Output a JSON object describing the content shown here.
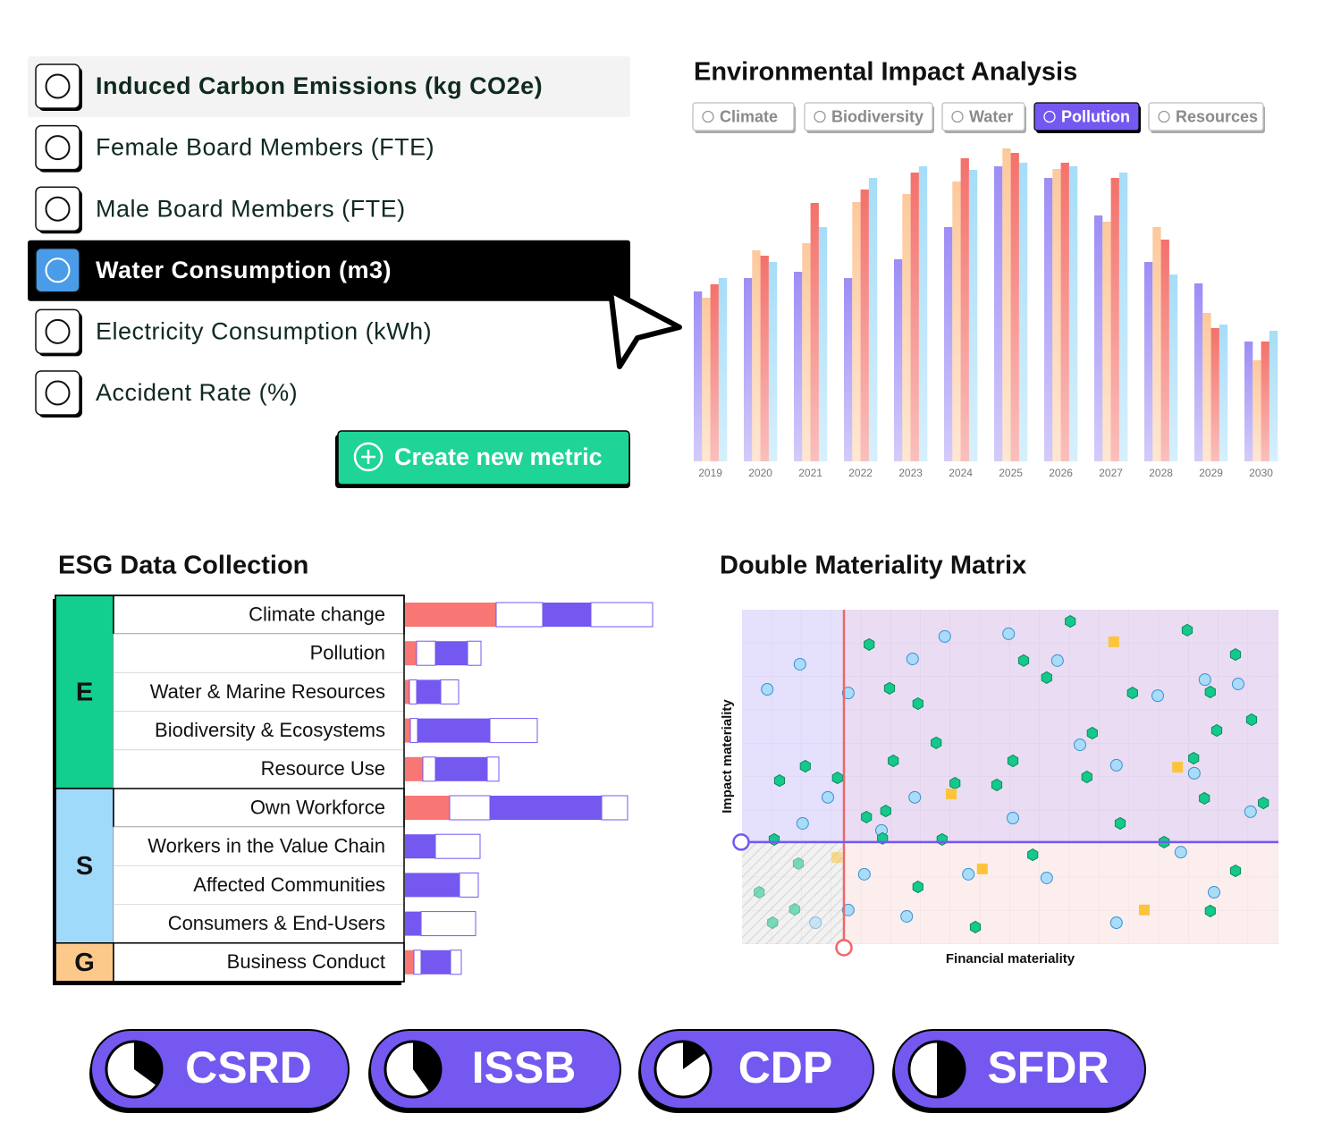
{
  "metrics": {
    "items": [
      "Induced Carbon Emissions (kg CO2e)",
      "Female Board Members (FTE)",
      "Male Board Members (FTE)",
      "Water Consumption (m3)",
      "Electricity Consumption (kWh)",
      "Accident Rate (%)"
    ],
    "hovered": 0,
    "selected": 3,
    "button": "Create new metric"
  },
  "impact_chart": {
    "type": "bar",
    "title": "Environmental Impact Analysis",
    "tabs": [
      "Climate",
      "Biodiversity",
      "Water",
      "Pollution",
      "Resources"
    ],
    "active_tab": 3,
    "categories": [
      "2019",
      "2020",
      "2021",
      "2022",
      "2023",
      "2024",
      "2025",
      "2026",
      "2027",
      "2028",
      "2029",
      "2030"
    ],
    "series": [
      {
        "color": "#9d8df6",
        "values": [
          190,
          205,
          212,
          205,
          226,
          262,
          330,
          317,
          275,
          223,
          199,
          134
        ]
      },
      {
        "color": "#fdc99c",
        "values": [
          183,
          236,
          244,
          290,
          299,
          313,
          350,
          327,
          268,
          262,
          166,
          113
        ]
      },
      {
        "color": "#f4716b",
        "values": [
          198,
          230,
          289,
          304,
          323,
          339,
          345,
          334,
          317,
          248,
          149,
          134
        ]
      },
      {
        "color": "#a6ddf8",
        "values": [
          205,
          223,
          262,
          317,
          330,
          326,
          334,
          330,
          323,
          209,
          153,
          146
        ]
      }
    ]
  },
  "esg_chart": {
    "type": "stacked-bar",
    "title": "ESG Data Collection",
    "groups": [
      {
        "label": "E",
        "color": "#13cf8f",
        "categories": [
          "Climate change",
          "Pollution",
          "Water & Marine Resources",
          "Biodiversity & Ecosystems",
          "Resource Use"
        ]
      },
      {
        "label": "S",
        "color": "#a0dafb",
        "categories": [
          "Own Workforce",
          "Workers in the Value Chain",
          "Affected  Communities",
          "Consumers  & End-Users"
        ]
      },
      {
        "label": "G",
        "color": "#fcc98b",
        "categories": [
          "Business Conduct"
        ]
      }
    ],
    "series": [
      {
        "color": "#f87673",
        "values": [
          102,
          13,
          5,
          6,
          20,
          50,
          0,
          0,
          0,
          10
        ]
      },
      {
        "color": "#ffffff",
        "values": [
          52,
          21,
          8,
          8,
          14,
          45,
          0,
          0,
          0,
          8
        ]
      },
      {
        "color": "#7458f0",
        "values": [
          54,
          36,
          27,
          81,
          58,
          125,
          34,
          61,
          18,
          33
        ]
      },
      {
        "color": "#ffffff",
        "values": [
          69,
          15,
          20,
          53,
          13,
          29,
          50,
          21,
          61,
          12
        ]
      }
    ]
  },
  "matrix": {
    "type": "scatter",
    "title": "Double Materiality Matrix",
    "xlabel": "Financial materiality",
    "ylabel": "Impact materiality",
    "xlim": [
      0,
      100
    ],
    "ylim": [
      0,
      100
    ],
    "thresholds": {
      "x": 19,
      "y": 30.5
    },
    "series": [
      {
        "shape": "circle",
        "color": "#a8dcf8",
        "x": [
          4.7,
          10.8,
          19.8,
          31.8,
          37.8,
          49.7,
          58.8,
          77.5,
          86.3,
          92.5,
          63.0,
          69.8,
          84.3,
          32.2,
          16.0,
          11.3,
          50.5,
          94.8,
          26.0,
          81.8,
          22.8,
          42.2,
          56.8,
          88.0,
          19.8,
          30.7,
          69.8,
          13.7
        ],
        "y": [
          76.2,
          83.7,
          75.1,
          85.3,
          92.0,
          92.8,
          84.8,
          74.3,
          79.1,
          77.8,
          59.6,
          53.5,
          51.1,
          43.9,
          43.9,
          36.1,
          37.7,
          39.6,
          34.0,
          27.5,
          20.9,
          20.9,
          19.8,
          15.5,
          10.2,
          8.3,
          6.4,
          6.4
        ]
      },
      {
        "shape": "hexagon",
        "color": "#14c98b",
        "x": [
          61.2,
          83.0,
          23.7,
          52.5,
          92.0,
          56.8,
          27.5,
          72.8,
          87.3,
          32.8,
          95.0,
          88.5,
          65.3,
          36.2,
          28.2,
          50.5,
          84.2,
          11.8,
          7.0,
          17.8,
          64.3,
          47.5,
          39.7,
          86.2,
          97.2,
          26.8,
          23.2,
          70.5,
          6.0,
          26.2,
          37.3,
          78.7,
          54.2,
          92.0,
          10.5,
          32.8,
          3.2,
          9.8,
          87.3,
          5.7,
          43.5
        ],
        "y": [
          96.5,
          93.9,
          89.6,
          84.8,
          86.6,
          79.7,
          76.5,
          75.1,
          75.4,
          71.9,
          67.1,
          63.9,
          63.1,
          60.2,
          54.8,
          54.8,
          55.6,
          53.2,
          48.9,
          49.7,
          50.0,
          47.6,
          48.1,
          43.6,
          42.2,
          39.8,
          38.0,
          36.1,
          31.3,
          31.6,
          31.3,
          30.5,
          26.7,
          21.9,
          24.1,
          17.1,
          15.5,
          10.4,
          9.9,
          6.4,
          5.1
        ]
      },
      {
        "shape": "square",
        "color": "#fcc43a",
        "x": [
          69.3,
          81.2,
          39.0,
          17.7,
          44.8,
          75.0
        ],
        "y": [
          90.4,
          52.9,
          44.9,
          25.9,
          22.5,
          10.2
        ]
      }
    ]
  },
  "frameworks": {
    "items": [
      {
        "label": "CSRD",
        "progress": 35
      },
      {
        "label": "ISSB",
        "progress": 40
      },
      {
        "label": "CDP",
        "progress": 15
      },
      {
        "label": "SFDR",
        "progress": 50
      }
    ]
  }
}
